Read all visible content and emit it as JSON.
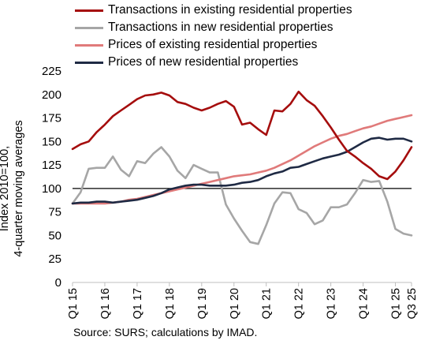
{
  "chart_data": {
    "type": "line",
    "title": "",
    "ylabel": [
      "Index 2010=100,",
      "4-quarter moving averages"
    ],
    "xlabel": "",
    "ylim": [
      0,
      225
    ],
    "yticks": [
      0,
      25,
      50,
      75,
      100,
      125,
      150,
      175,
      200,
      225
    ],
    "reference_line": 100,
    "grid": false,
    "legend_position": "top",
    "x_tick_labels": [
      "Q1 15",
      "Q1 16",
      "Q1 17",
      "Q1 18",
      "Q1 19",
      "Q1 20",
      "Q1 21",
      "Q1 22",
      "Q1 23",
      "Q1 24",
      "Q1 25",
      "Q3 25"
    ],
    "x_tick_indices": [
      0,
      4,
      8,
      12,
      16,
      20,
      24,
      28,
      32,
      36,
      40,
      42
    ],
    "n_points": 43,
    "series": [
      {
        "name": "Transactions in existing residential properties",
        "color": "#a50d0d",
        "values": [
          142,
          147,
          150,
          160,
          168,
          177,
          183,
          189,
          195,
          199,
          200,
          202,
          199,
          192,
          190,
          186,
          183,
          186,
          190,
          193,
          187,
          168,
          170,
          163,
          157,
          183,
          182,
          190,
          203,
          194,
          188,
          177,
          165,
          152,
          140,
          134,
          127,
          121,
          113,
          110,
          118,
          130,
          144
        ]
      },
      {
        "name": "Transactions in new residential properties",
        "color": "#a6a6a6",
        "values": [
          84,
          96,
          121,
          122,
          122,
          134,
          120,
          113,
          129,
          127,
          137,
          144,
          134,
          119,
          111,
          125,
          121,
          117,
          117,
          83,
          68,
          55,
          43,
          41,
          61,
          84,
          96,
          95,
          78,
          74,
          62,
          66,
          80,
          80,
          83,
          95,
          109,
          107,
          108,
          86,
          57,
          52,
          50
        ]
      },
      {
        "name": "Prices of existing residential properties",
        "color": "#e07a7a",
        "values": [
          84,
          84,
          84,
          84,
          84,
          85,
          86,
          88,
          89,
          91,
          93,
          95,
          97,
          99,
          101,
          103,
          105,
          107,
          109,
          111,
          113,
          114,
          115,
          117,
          119,
          122,
          126,
          130,
          135,
          140,
          145,
          149,
          153,
          156,
          158,
          161,
          164,
          166,
          169,
          172,
          174,
          176,
          178
        ]
      },
      {
        "name": "Prices of new residential properties",
        "color": "#1f2a44",
        "values": [
          84,
          85,
          85,
          86,
          86,
          85,
          86,
          87,
          88,
          90,
          92,
          95,
          99,
          101,
          103,
          104,
          104,
          103,
          103,
          103,
          104,
          106,
          107,
          109,
          113,
          116,
          118,
          122,
          123,
          126,
          129,
          132,
          134,
          136,
          139,
          144,
          149,
          153,
          154,
          152,
          153,
          153,
          150
        ]
      }
    ]
  },
  "source_text": "Source: SURS; calculations by IMAD."
}
